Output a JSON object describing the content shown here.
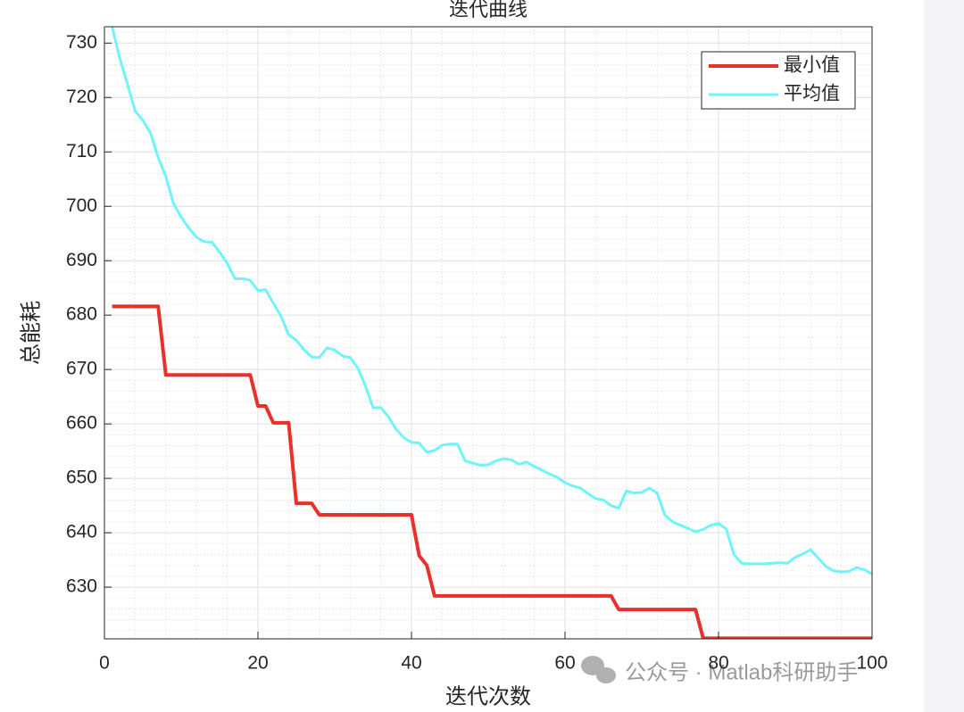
{
  "chart_data": {
    "type": "line",
    "title": "迭代曲线",
    "xlabel": "迭代次数",
    "ylabel": "总能耗",
    "x": [
      1,
      2,
      3,
      4,
      5,
      6,
      7,
      8,
      9,
      10,
      11,
      12,
      13,
      14,
      15,
      16,
      17,
      18,
      19,
      20,
      21,
      22,
      23,
      24,
      25,
      26,
      27,
      28,
      29,
      30,
      31,
      32,
      33,
      34,
      35,
      36,
      37,
      38,
      39,
      40,
      41,
      42,
      43,
      44,
      45,
      46,
      47,
      48,
      49,
      50,
      51,
      52,
      53,
      54,
      55,
      56,
      57,
      58,
      59,
      60,
      61,
      62,
      63,
      64,
      65,
      66,
      67,
      68,
      69,
      70,
      71,
      72,
      73,
      74,
      75,
      76,
      77,
      78,
      79,
      80,
      81,
      82,
      83,
      84,
      85,
      86,
      87,
      88,
      89,
      90,
      91,
      92,
      93,
      94,
      95,
      96,
      97,
      98,
      99,
      100
    ],
    "series": [
      {
        "name": "最小值",
        "color": "#e8312a",
        "width": 4,
        "values": [
          681.6,
          681.6,
          681.6,
          681.6,
          681.6,
          681.6,
          681.6,
          669,
          669,
          669,
          669,
          669,
          669,
          669,
          669,
          669,
          669,
          669,
          669,
          663.3,
          663.3,
          660.2,
          660.2,
          660.2,
          645.4,
          645.4,
          645.4,
          643.3,
          643.3,
          643.3,
          643.3,
          643.3,
          643.3,
          643.3,
          643.3,
          643.3,
          643.3,
          643.3,
          643.3,
          643.3,
          635.8,
          634,
          628.4,
          628.4,
          628.4,
          628.4,
          628.4,
          628.4,
          628.4,
          628.4,
          628.4,
          628.4,
          628.4,
          628.4,
          628.4,
          628.4,
          628.4,
          628.4,
          628.4,
          628.4,
          628.4,
          628.4,
          628.4,
          628.4,
          628.4,
          628.4,
          625.9,
          625.9,
          625.9,
          625.9,
          625.9,
          625.9,
          625.9,
          625.9,
          625.9,
          625.9,
          625.9,
          620.6,
          620.6,
          620.6,
          620.6,
          620.6,
          620.6,
          620.6,
          620.6,
          620.6,
          620.6,
          620.6,
          620.6,
          620.6,
          620.6,
          620.6,
          620.6,
          620.6,
          620.6,
          620.6,
          620.6,
          620.6,
          620.6,
          620.6
        ]
      },
      {
        "name": "平均值",
        "color": "#6ff4fb",
        "width": 3,
        "values": [
          733,
          727.2,
          722.5,
          717.5,
          715.8,
          713.5,
          709,
          705.5,
          700.5,
          698,
          696,
          694.3,
          693.5,
          693.4,
          691.6,
          689.5,
          686.7,
          686.7,
          686.4,
          684.5,
          684.7,
          682.2,
          679.8,
          676.4,
          675.4,
          673.6,
          672.3,
          672.2,
          674,
          673.6,
          672.5,
          672.2,
          670.3,
          667,
          663,
          663,
          661.3,
          659,
          657.5,
          656.6,
          656.5,
          654.8,
          655.1,
          656.1,
          656.3,
          656.3,
          653.2,
          652.8,
          652.4,
          652.5,
          653.2,
          653.6,
          653.4,
          652.6,
          653,
          652.2,
          651.5,
          650.8,
          650.2,
          649.2,
          648.6,
          648.2,
          647.2,
          646.3,
          646,
          645,
          644.5,
          647.7,
          647.3,
          647.4,
          648.2,
          647.3,
          643.3,
          642,
          641.4,
          640.8,
          640.2,
          640.6,
          641.4,
          641.7,
          640.7,
          636,
          634.4,
          634.3,
          634.3,
          634.3,
          634.4,
          634.5,
          634.4,
          635.5,
          636.1,
          636.9,
          635.3,
          633.8,
          633,
          632.8,
          632.9,
          633.6,
          633.2,
          632.4
        ]
      }
    ],
    "xlim": [
      0,
      100
    ],
    "xticks": [
      0,
      20,
      40,
      60,
      80,
      100
    ],
    "ylim": [
      620.5,
      733
    ],
    "yticks": [
      630,
      640,
      650,
      660,
      670,
      680,
      690,
      700,
      710,
      720,
      730
    ],
    "grid": true,
    "minor_grid": true,
    "legend": "upper right",
    "watermark": "公众号 · Matlab科研助手"
  }
}
